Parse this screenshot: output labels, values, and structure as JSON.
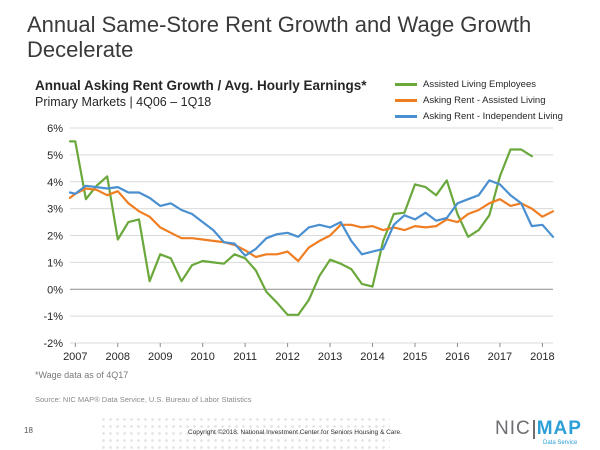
{
  "slide": {
    "title": "Annual Same-Store Rent Growth and Wage Growth Decelerate",
    "footnote": "*Wage data as of 4Q17",
    "source": "Source: NIC MAP® Data Service, U.S. Bureau of Labor Statistics",
    "page_number": "18",
    "copyright": "Copyright ©2018. National Investment Center for Seniors Housing & Care.",
    "logo": {
      "left": "NIC",
      "right": "MAP",
      "sub": "Data Service"
    }
  },
  "chart_data": {
    "type": "line",
    "title": "Annual Asking Rent Growth / Avg. Hourly Earnings*",
    "subtitle": "Primary Markets | 4Q06 – 1Q18",
    "xlabel": "",
    "ylabel": "",
    "xlim": [
      2006.875,
      2018.25
    ],
    "ylim": [
      -2,
      6
    ],
    "y_ticks": [
      -2,
      -1,
      0,
      1,
      2,
      3,
      4,
      5,
      6
    ],
    "y_tick_labels": [
      "-2%",
      "-1%",
      "0%",
      "1%",
      "2%",
      "3%",
      "4%",
      "5%",
      "6%"
    ],
    "x_ticks": [
      2007,
      2008,
      2009,
      2010,
      2011,
      2012,
      2013,
      2014,
      2015,
      2016,
      2017,
      2018
    ],
    "x_tick_labels": [
      "2007",
      "2008",
      "2009",
      "2010",
      "2011",
      "2012",
      "2013",
      "2014",
      "2015",
      "2016",
      "2017",
      "2018"
    ],
    "grid": "horizontal",
    "legend_position": "top-right",
    "series": [
      {
        "name": "Assisted Living Employees",
        "color": "#6aa83c",
        "x": [
          2006.875,
          2007.0,
          2007.25,
          2007.5,
          2007.75,
          2008.0,
          2008.25,
          2008.5,
          2008.75,
          2009.0,
          2009.25,
          2009.5,
          2009.75,
          2010.0,
          2010.25,
          2010.5,
          2010.75,
          2011.0,
          2011.25,
          2011.5,
          2011.75,
          2012.0,
          2012.25,
          2012.5,
          2012.75,
          2013.0,
          2013.25,
          2013.5,
          2013.75,
          2014.0,
          2014.25,
          2014.5,
          2014.75,
          2015.0,
          2015.25,
          2015.5,
          2015.75,
          2016.0,
          2016.25,
          2016.5,
          2016.75,
          2017.0,
          2017.25,
          2017.5,
          2017.75
        ],
        "y": [
          5.5,
          5.5,
          3.35,
          3.85,
          4.2,
          1.85,
          2.5,
          2.6,
          0.3,
          1.3,
          1.15,
          0.3,
          0.9,
          1.05,
          1.0,
          0.95,
          1.3,
          1.15,
          0.7,
          -0.1,
          -0.5,
          -0.95,
          -0.95,
          -0.4,
          0.5,
          1.1,
          0.95,
          0.75,
          0.2,
          0.1,
          1.8,
          2.8,
          2.85,
          3.9,
          3.8,
          3.5,
          4.05,
          2.8,
          1.95,
          2.2,
          2.75,
          4.2,
          5.2,
          5.2,
          4.95
        ]
      },
      {
        "name": "Asking Rent - Assisted Living",
        "color": "#ef7d22",
        "x": [
          2006.875,
          2007.0,
          2007.25,
          2007.5,
          2007.75,
          2008.0,
          2008.25,
          2008.5,
          2008.75,
          2009.0,
          2009.25,
          2009.5,
          2009.75,
          2010.0,
          2010.25,
          2010.5,
          2010.75,
          2011.0,
          2011.25,
          2011.5,
          2011.75,
          2012.0,
          2012.25,
          2012.5,
          2012.75,
          2013.0,
          2013.25,
          2013.5,
          2013.75,
          2014.0,
          2014.25,
          2014.5,
          2014.75,
          2015.0,
          2015.25,
          2015.5,
          2015.75,
          2016.0,
          2016.25,
          2016.5,
          2016.75,
          2017.0,
          2017.25,
          2017.5,
          2017.75,
          2018.0,
          2018.25
        ],
        "y": [
          3.4,
          3.55,
          3.75,
          3.7,
          3.5,
          3.65,
          3.2,
          2.9,
          2.7,
          2.3,
          2.1,
          1.9,
          1.9,
          1.85,
          1.8,
          1.75,
          1.65,
          1.45,
          1.2,
          1.3,
          1.3,
          1.4,
          1.05,
          1.55,
          1.8,
          2.0,
          2.4,
          2.4,
          2.3,
          2.35,
          2.2,
          2.3,
          2.2,
          2.35,
          2.3,
          2.35,
          2.6,
          2.5,
          2.8,
          2.95,
          3.2,
          3.35,
          3.1,
          3.2,
          3.0,
          2.7,
          2.9
        ]
      },
      {
        "name": "Asking Rent - Independent Living",
        "color": "#4a90d1",
        "x": [
          2006.875,
          2007.0,
          2007.25,
          2007.5,
          2007.75,
          2008.0,
          2008.25,
          2008.5,
          2008.75,
          2009.0,
          2009.25,
          2009.5,
          2009.75,
          2010.0,
          2010.25,
          2010.5,
          2010.75,
          2011.0,
          2011.25,
          2011.5,
          2011.75,
          2012.0,
          2012.25,
          2012.5,
          2012.75,
          2013.0,
          2013.25,
          2013.5,
          2013.75,
          2014.0,
          2014.25,
          2014.5,
          2014.75,
          2015.0,
          2015.25,
          2015.5,
          2015.75,
          2016.0,
          2016.25,
          2016.5,
          2016.75,
          2017.0,
          2017.25,
          2017.5,
          2017.75,
          2018.0,
          2018.25
        ],
        "y": [
          3.6,
          3.55,
          3.85,
          3.8,
          3.75,
          3.8,
          3.6,
          3.6,
          3.4,
          3.1,
          3.2,
          2.95,
          2.8,
          2.5,
          2.2,
          1.75,
          1.7,
          1.25,
          1.5,
          1.9,
          2.05,
          2.1,
          1.95,
          2.3,
          2.4,
          2.3,
          2.5,
          1.8,
          1.3,
          1.4,
          1.5,
          2.4,
          2.75,
          2.6,
          2.85,
          2.55,
          2.65,
          3.2,
          3.35,
          3.5,
          4.05,
          3.9,
          3.5,
          3.2,
          2.35,
          2.4,
          1.95
        ]
      }
    ]
  }
}
